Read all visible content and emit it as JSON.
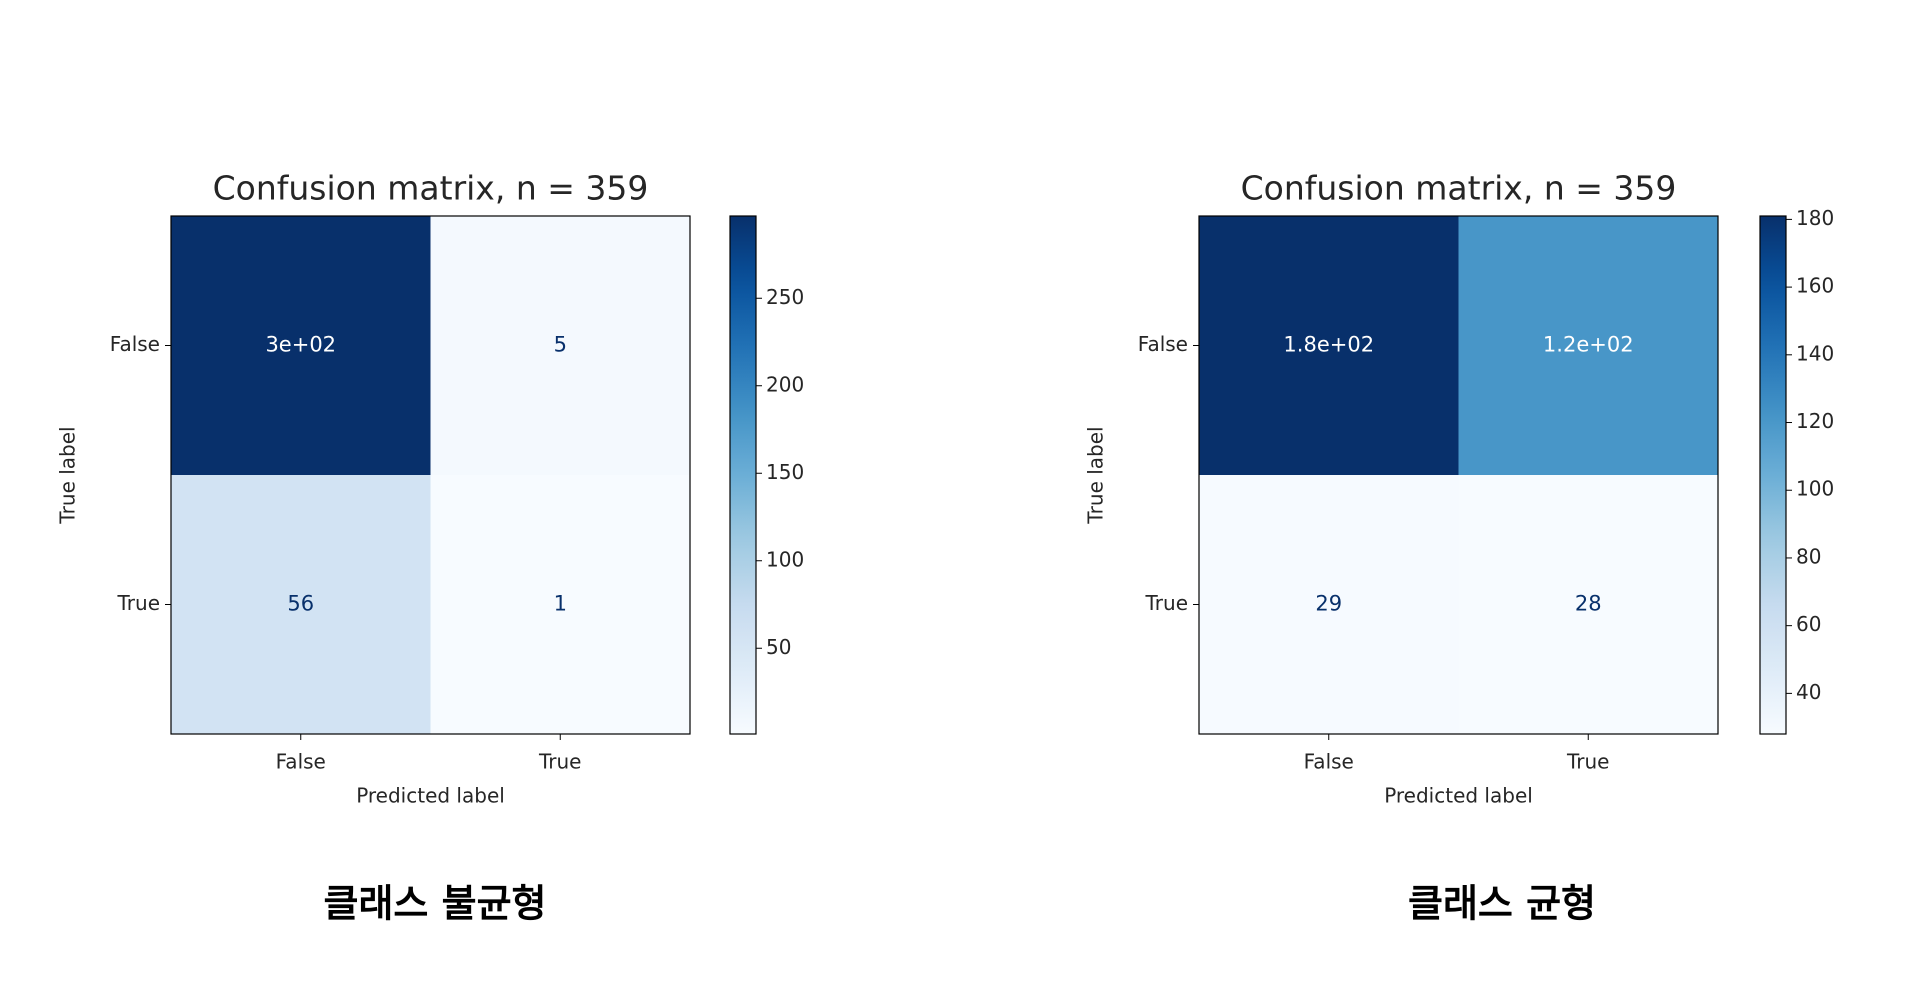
{
  "chart_data": [
    {
      "type": "heatmap",
      "title": "Confusion matrix, n = 359",
      "x_label": "Predicted label",
      "y_label": "True label",
      "x_categories": [
        "False",
        "True"
      ],
      "y_categories": [
        "False",
        "True"
      ],
      "values": [
        [
          297,
          5
        ],
        [
          56,
          1
        ]
      ],
      "value_labels": [
        [
          "3e+02",
          "5"
        ],
        [
          "56",
          "1"
        ]
      ],
      "colormap": "Blues",
      "clim": [
        1,
        297
      ],
      "cticks": [
        50,
        100,
        150,
        200,
        250
      ],
      "caption": "클래스 불균형"
    },
    {
      "type": "heatmap",
      "title": "Confusion matrix, n = 359",
      "x_label": "Predicted label",
      "y_label": "True label",
      "x_categories": [
        "False",
        "True"
      ],
      "y_categories": [
        "False",
        "True"
      ],
      "values": [
        [
          181,
          121
        ],
        [
          29,
          28
        ]
      ],
      "value_labels": [
        [
          "1.8e+02",
          "1.2e+02"
        ],
        [
          "29",
          "28"
        ]
      ],
      "colormap": "Blues",
      "clim": [
        28,
        181
      ],
      "cticks": [
        40,
        60,
        80,
        100,
        120,
        140,
        160,
        180
      ],
      "caption": "클래스 균형"
    }
  ]
}
